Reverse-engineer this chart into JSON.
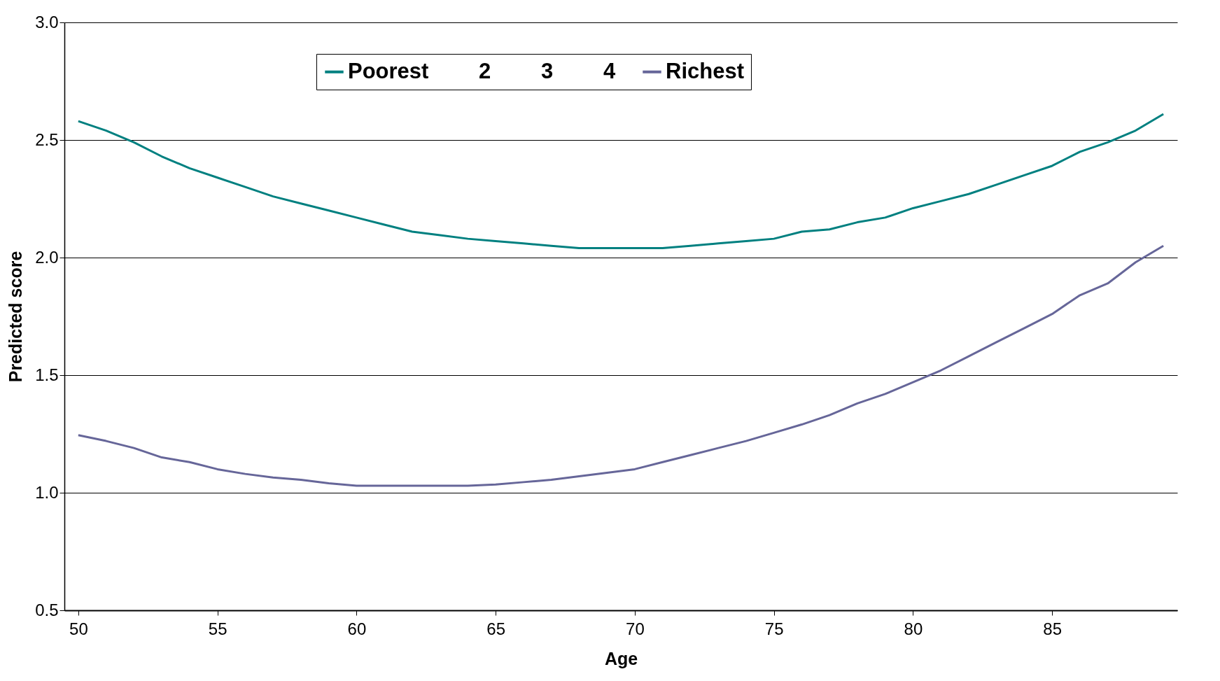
{
  "chart_data": {
    "type": "line",
    "xlabel": "Age",
    "ylabel": "Predicted score",
    "x": [
      50,
      51,
      52,
      53,
      54,
      55,
      56,
      57,
      58,
      59,
      60,
      61,
      62,
      63,
      64,
      65,
      66,
      67,
      68,
      69,
      70,
      71,
      72,
      73,
      74,
      75,
      76,
      77,
      78,
      79,
      80,
      81,
      82,
      83,
      84,
      85,
      86,
      87,
      88,
      89
    ],
    "series": [
      {
        "name": "Poorest",
        "color": "#008080",
        "values": [
          2.58,
          2.54,
          2.49,
          2.43,
          2.38,
          2.34,
          2.3,
          2.26,
          2.23,
          2.2,
          2.17,
          2.14,
          2.11,
          2.095,
          2.08,
          2.07,
          2.06,
          2.05,
          2.04,
          2.04,
          2.04,
          2.04,
          2.05,
          2.06,
          2.07,
          2.08,
          2.11,
          2.12,
          2.15,
          2.17,
          2.21,
          2.24,
          2.27,
          2.31,
          2.35,
          2.39,
          2.45,
          2.49,
          2.54,
          2.61
        ]
      },
      {
        "name": "2",
        "values": [
          null,
          null,
          null,
          null,
          null,
          null,
          null,
          null,
          null,
          null,
          null,
          null,
          null,
          null,
          null,
          null,
          null,
          null,
          null,
          null,
          null,
          null,
          null,
          null,
          null,
          null,
          null,
          null,
          null,
          null,
          null,
          null,
          null,
          null,
          null,
          null,
          null,
          null,
          null,
          null
        ]
      },
      {
        "name": "3",
        "values": [
          null,
          null,
          null,
          null,
          null,
          null,
          null,
          null,
          null,
          null,
          null,
          null,
          null,
          null,
          null,
          null,
          null,
          null,
          null,
          null,
          null,
          null,
          null,
          null,
          null,
          null,
          null,
          null,
          null,
          null,
          null,
          null,
          null,
          null,
          null,
          null,
          null,
          null,
          null,
          null
        ]
      },
      {
        "name": "4",
        "values": [
          null,
          null,
          null,
          null,
          null,
          null,
          null,
          null,
          null,
          null,
          null,
          null,
          null,
          null,
          null,
          null,
          null,
          null,
          null,
          null,
          null,
          null,
          null,
          null,
          null,
          null,
          null,
          null,
          null,
          null,
          null,
          null,
          null,
          null,
          null,
          null,
          null,
          null,
          null,
          null
        ]
      },
      {
        "name": "Richest",
        "color": "#666699",
        "values": [
          1.245,
          1.22,
          1.19,
          1.15,
          1.13,
          1.1,
          1.08,
          1.065,
          1.055,
          1.04,
          1.03,
          1.03,
          1.03,
          1.03,
          1.03,
          1.035,
          1.045,
          1.055,
          1.07,
          1.085,
          1.1,
          1.13,
          1.16,
          1.19,
          1.22,
          1.255,
          1.29,
          1.33,
          1.38,
          1.42,
          1.47,
          1.52,
          1.58,
          1.64,
          1.7,
          1.76,
          1.84,
          1.89,
          1.98,
          2.05
        ]
      }
    ],
    "xlim": [
      49.5,
      89.5
    ],
    "xticks": [
      50,
      55,
      60,
      65,
      70,
      75,
      80,
      85
    ],
    "ylim": [
      0.5,
      3
    ],
    "yticks": [
      {
        "value": 0.5,
        "label": "0.5"
      },
      {
        "value": 1,
        "label": "1.0"
      },
      {
        "value": 1.5,
        "label": "1.5"
      },
      {
        "value": 2,
        "label": "2.0"
      },
      {
        "value": 2.5,
        "label": "2.5"
      },
      {
        "value": 3,
        "label": "3.0"
      }
    ],
    "grid": "y",
    "legend": "top",
    "marker": "none",
    "line_style": "solid"
  }
}
